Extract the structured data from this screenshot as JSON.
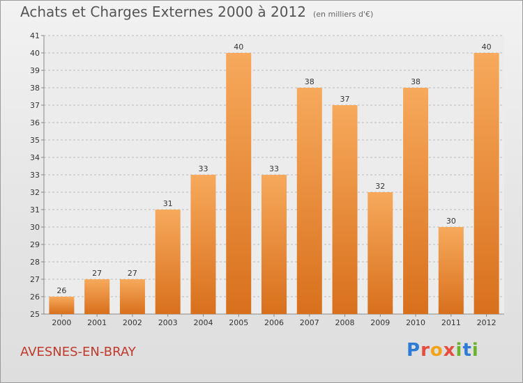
{
  "header": {
    "title": "Achats et Charges Externes 2000 à 2012",
    "subtitle": "(en milliers d'€)"
  },
  "footer": {
    "place": "AVESNES-EN-BRAY",
    "logo_text": "Proxiti"
  },
  "colors": {
    "bar_top": "#f7a95c",
    "bar_bottom": "#d8701c",
    "grid": "#bdbdbd",
    "axis_text": "#333333"
  },
  "chart_data": {
    "type": "bar",
    "title": "Achats et Charges Externes 2000 à 2012",
    "subtitle": "(en milliers d'€)",
    "categories": [
      "2000",
      "2001",
      "2002",
      "2003",
      "2004",
      "2005",
      "2006",
      "2007",
      "2008",
      "2009",
      "2010",
      "2011",
      "2012"
    ],
    "values": [
      26,
      27,
      27,
      31,
      33,
      40,
      33,
      38,
      37,
      32,
      38,
      30,
      40
    ],
    "ylim": [
      25,
      41
    ],
    "yticks": [
      25,
      26,
      27,
      28,
      29,
      30,
      31,
      32,
      33,
      34,
      35,
      36,
      37,
      38,
      39,
      40,
      41
    ],
    "grid": "horizontal-dashed",
    "data_labels": true
  }
}
